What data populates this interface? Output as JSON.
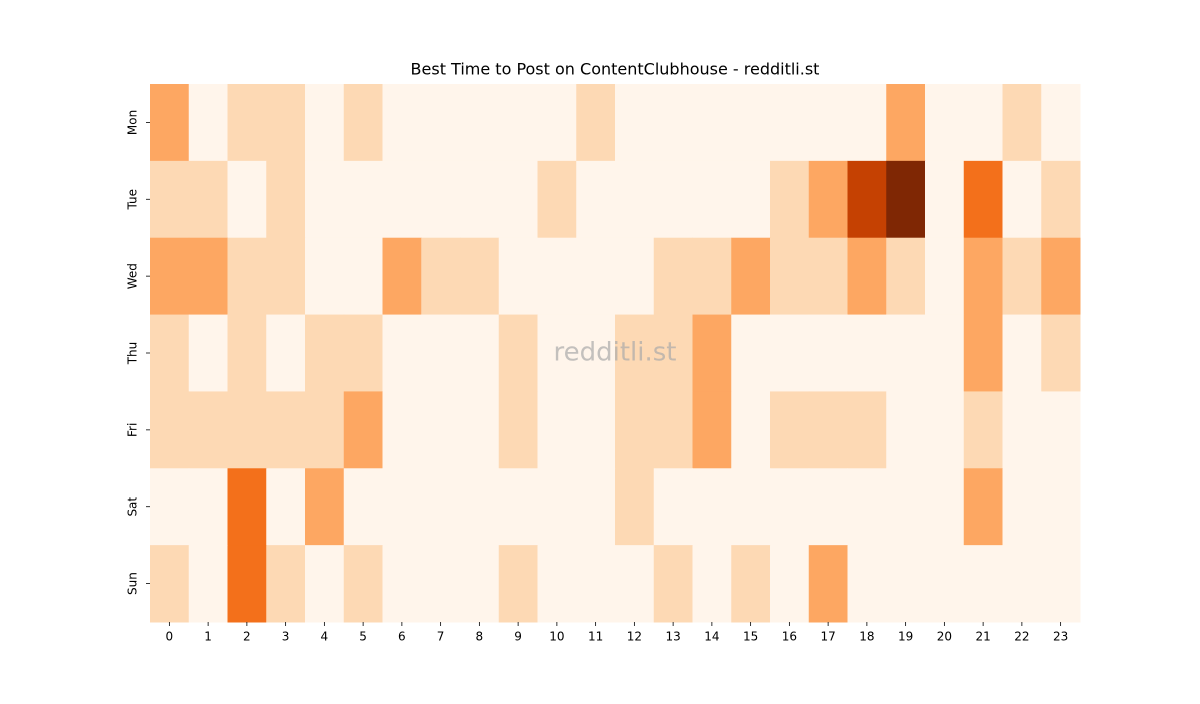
{
  "chart_data": {
    "type": "heatmap",
    "title": "Best Time to Post on ContentClubhouse - redditli.st",
    "watermark": "redditli.st",
    "x": [
      0,
      1,
      2,
      3,
      4,
      5,
      6,
      7,
      8,
      9,
      10,
      11,
      12,
      13,
      14,
      15,
      16,
      17,
      18,
      19,
      20,
      21,
      22,
      23
    ],
    "y": [
      "Mon",
      "Tue",
      "Wed",
      "Thu",
      "Fri",
      "Sat",
      "Sun"
    ],
    "values": [
      [
        2,
        0,
        1,
        1,
        0,
        1,
        0,
        0,
        0,
        0,
        0,
        1,
        0,
        0,
        0,
        0,
        0,
        0,
        0,
        2,
        0,
        0,
        1,
        0
      ],
      [
        1,
        1,
        0,
        1,
        0,
        0,
        0,
        0,
        0,
        0,
        1,
        0,
        0,
        0,
        0,
        0,
        1,
        2,
        4,
        5,
        0,
        3,
        0,
        1
      ],
      [
        2,
        2,
        1,
        1,
        0,
        0,
        2,
        1,
        1,
        0,
        0,
        0,
        0,
        1,
        1,
        2,
        1,
        1,
        2,
        1,
        0,
        2,
        1,
        2
      ],
      [
        1,
        0,
        1,
        0,
        1,
        1,
        0,
        0,
        0,
        1,
        0,
        0,
        1,
        1,
        2,
        0,
        0,
        0,
        0,
        0,
        0,
        2,
        0,
        1
      ],
      [
        1,
        1,
        1,
        1,
        1,
        2,
        0,
        0,
        0,
        1,
        0,
        0,
        1,
        1,
        2,
        0,
        1,
        1,
        1,
        0,
        0,
        1,
        0,
        0
      ],
      [
        0,
        0,
        3,
        0,
        2,
        0,
        0,
        0,
        0,
        0,
        0,
        0,
        1,
        0,
        0,
        0,
        0,
        0,
        0,
        0,
        0,
        2,
        0,
        0
      ],
      [
        1,
        0,
        3,
        1,
        0,
        1,
        0,
        0,
        0,
        1,
        0,
        0,
        0,
        1,
        0,
        1,
        0,
        2,
        0,
        0,
        0,
        0,
        0,
        0
      ]
    ],
    "colormap": [
      "#fff5eb",
      "#fdd9b4",
      "#fda762",
      "#f3701b",
      "#c54102",
      "#7f2704"
    ]
  }
}
